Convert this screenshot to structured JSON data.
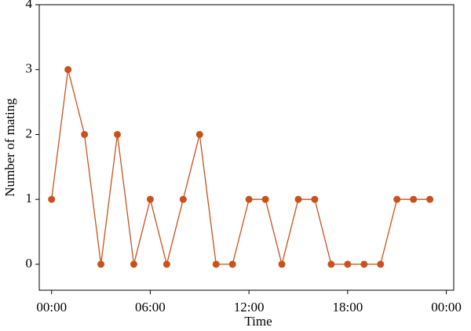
{
  "chart_data": {
    "type": "line",
    "xlabel": "Time",
    "ylabel": "Number of mating",
    "x": [
      0,
      1,
      2,
      3,
      4,
      5,
      6,
      7,
      8,
      9,
      10,
      11,
      12,
      13,
      14,
      15,
      16,
      17,
      18,
      19,
      20,
      21,
      22,
      23
    ],
    "values": [
      1,
      3,
      2,
      0,
      2,
      0,
      1,
      0,
      1,
      2,
      0,
      0,
      1,
      1,
      0,
      1,
      1,
      0,
      0,
      0,
      0,
      1,
      1,
      1
    ],
    "color": "#c9521c",
    "xlim": [
      -0.75,
      24.45
    ],
    "xticks": [
      {
        "value": 0,
        "label": "00:00"
      },
      {
        "value": 6,
        "label": "06:00"
      },
      {
        "value": 12,
        "label": "12:00"
      },
      {
        "value": 18,
        "label": "18:00"
      },
      {
        "value": 24,
        "label": "00:00"
      }
    ],
    "ylim": [
      -0.4,
      4
    ],
    "yticks": [
      0,
      1,
      2,
      3,
      4
    ]
  }
}
